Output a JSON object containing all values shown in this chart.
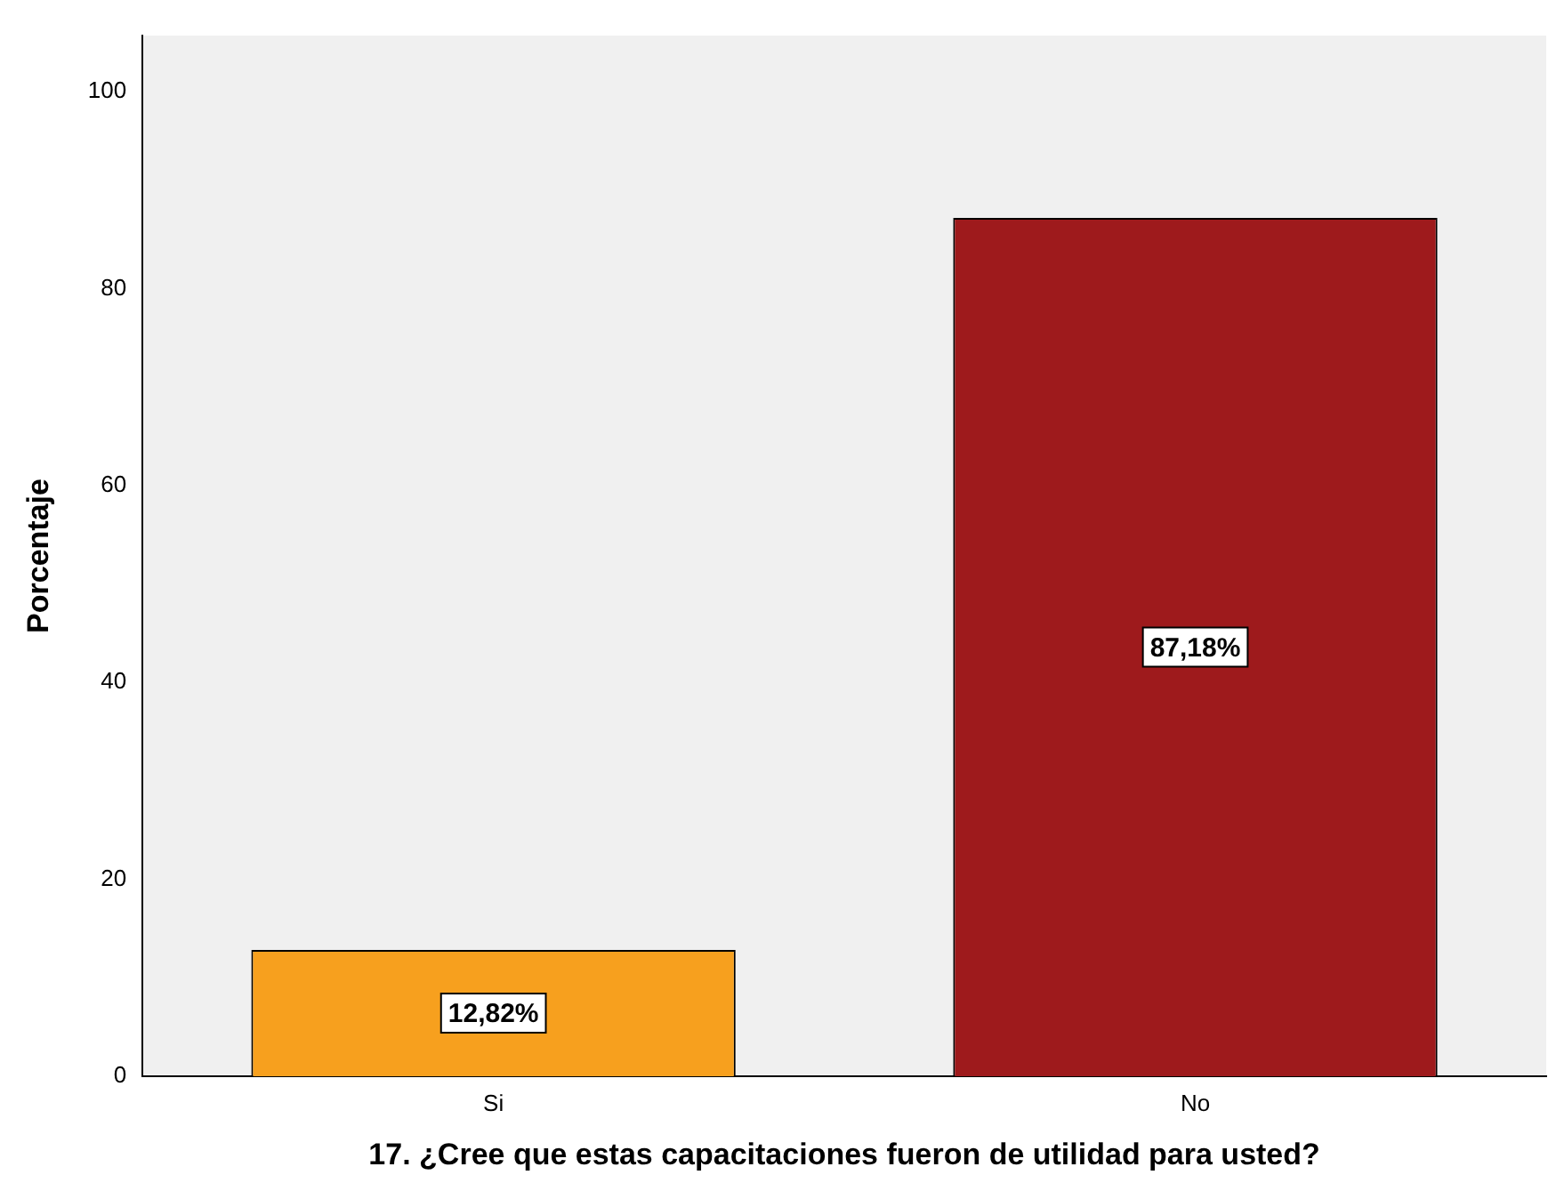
{
  "chart_data": {
    "type": "bar",
    "xlabel": "17. ¿Cree que estas capacitaciones fueron de utilidad para usted?",
    "ylabel": "Porcentaje",
    "categories": [
      "Si",
      "No"
    ],
    "values": [
      12.82,
      87.18
    ],
    "colors": [
      "#f7a01e",
      "#9e1a1c"
    ],
    "value_labels": [
      "12,82%",
      "87,18%"
    ],
    "ylim": [
      0,
      105.7
    ],
    "yticks": [
      0,
      20,
      40,
      60,
      80,
      100
    ],
    "grid": false,
    "legend": false
  }
}
